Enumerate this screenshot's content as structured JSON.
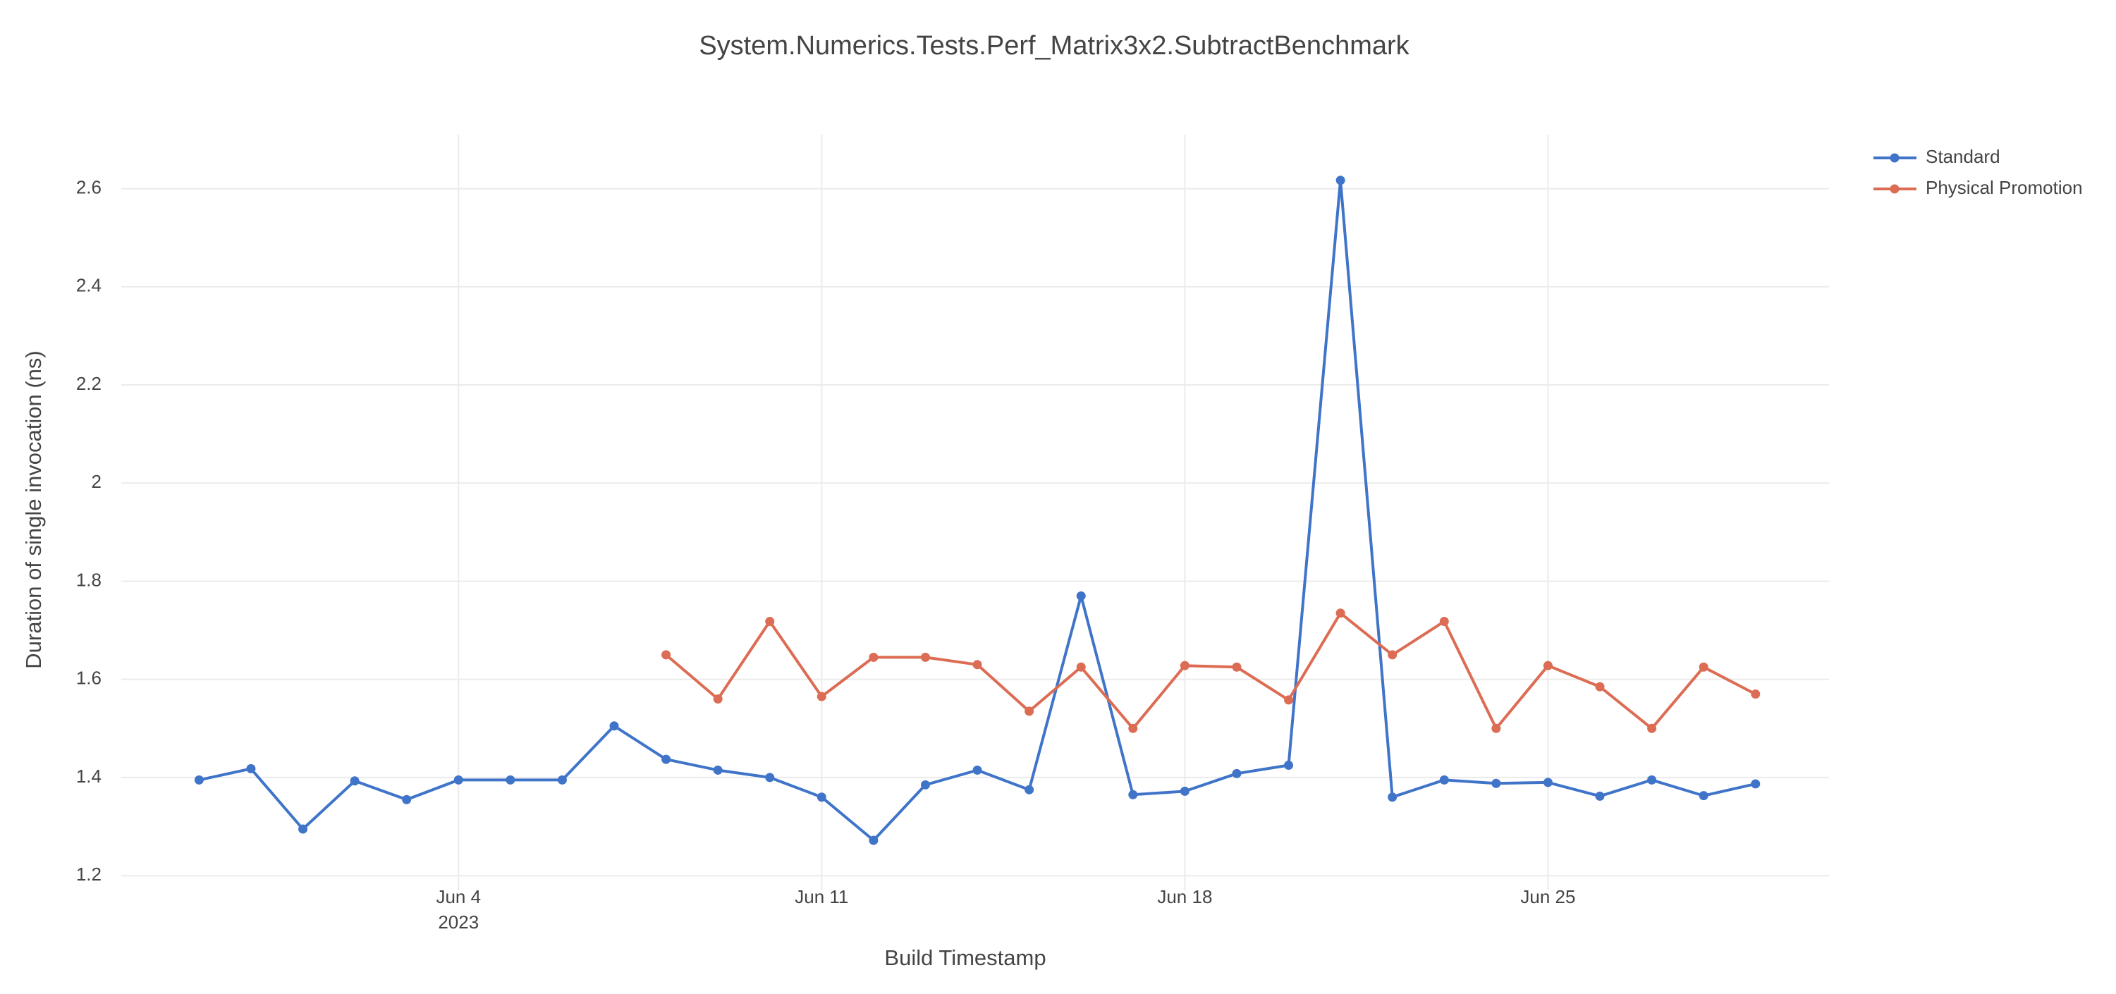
{
  "chart_data": {
    "type": "line",
    "title": "System.Numerics.Tests.Perf_Matrix3x2.SubtractBenchmark",
    "x_label": "Build Timestamp",
    "y_label": "Duration of single invocation (ns)",
    "xlim": [
      "2023-05-28T12:00",
      "2023-06-30T10:00"
    ],
    "xticks": [
      {
        "value": "2023-06-04",
        "label": "Jun 4"
      },
      {
        "value": "2023-06-11",
        "label": "Jun 11"
      },
      {
        "value": "2023-06-18",
        "label": "Jun 18"
      },
      {
        "value": "2023-06-25",
        "label": "Jun 25"
      }
    ],
    "xtick_year": "2023",
    "ylim": [
      1.17,
      2.71
    ],
    "yticks": [
      1.2,
      1.4,
      1.6,
      1.8,
      2,
      2.2,
      2.4,
      2.6
    ],
    "grid": true,
    "legend": "top-right",
    "series": [
      {
        "name": "Standard",
        "color": "#3f74c9",
        "x": [
          "2023-05-30",
          "2023-05-31",
          "2023-06-01",
          "2023-06-02",
          "2023-06-03",
          "2023-06-04",
          "2023-06-05",
          "2023-06-06",
          "2023-06-07",
          "2023-06-08",
          "2023-06-09",
          "2023-06-10",
          "2023-06-11",
          "2023-06-12",
          "2023-06-13",
          "2023-06-14",
          "2023-06-15",
          "2023-06-16",
          "2023-06-17",
          "2023-06-18",
          "2023-06-19",
          "2023-06-20",
          "2023-06-21",
          "2023-06-22",
          "2023-06-23",
          "2023-06-24",
          "2023-06-25",
          "2023-06-26",
          "2023-06-27",
          "2023-06-28",
          "2023-06-29"
        ],
        "values": [
          1.395,
          1.418,
          1.295,
          1.393,
          1.355,
          1.395,
          1.395,
          1.395,
          1.505,
          1.437,
          1.415,
          1.4,
          1.36,
          1.272,
          1.385,
          1.415,
          1.375,
          1.77,
          1.365,
          1.372,
          1.408,
          1.425,
          2.617,
          1.36,
          1.395,
          1.388,
          1.39,
          1.362,
          1.395,
          1.363,
          1.387
        ]
      },
      {
        "name": "Physical Promotion",
        "color": "#dc6c53",
        "x": [
          "2023-06-08",
          "2023-06-09",
          "2023-06-10",
          "2023-06-11",
          "2023-06-12",
          "2023-06-13",
          "2023-06-14",
          "2023-06-15",
          "2023-06-16",
          "2023-06-17",
          "2023-06-18",
          "2023-06-19",
          "2023-06-20",
          "2023-06-21",
          "2023-06-22",
          "2023-06-23",
          "2023-06-24",
          "2023-06-25",
          "2023-06-26",
          "2023-06-27",
          "2023-06-28",
          "2023-06-29"
        ],
        "values": [
          1.65,
          1.56,
          1.718,
          1.565,
          1.645,
          1.645,
          1.63,
          1.535,
          1.625,
          1.5,
          1.628,
          1.625,
          1.558,
          1.735,
          1.65,
          1.718,
          1.5,
          1.628,
          1.585,
          1.5,
          1.625,
          1.57
        ]
      }
    ]
  }
}
